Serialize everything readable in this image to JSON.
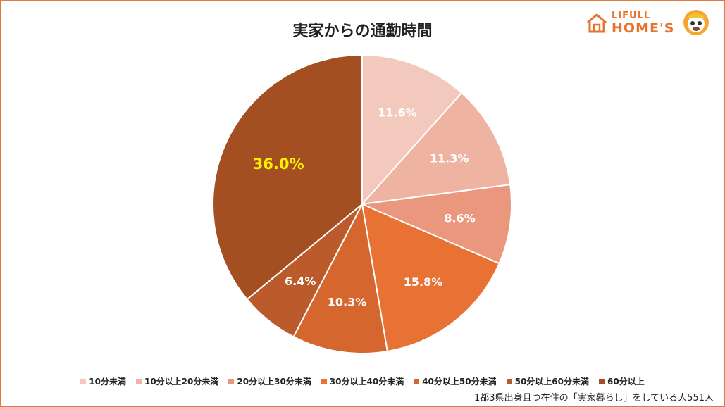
{
  "title": "実家からの通勤時間",
  "logo": {
    "line1": "LIFULL",
    "line2": "HOME'S",
    "brand_color": "#e8732e"
  },
  "chart_data": {
    "type": "pie",
    "title": "実家からの通勤時間",
    "start_angle_deg": 0,
    "direction": "clockwise",
    "slices": [
      {
        "label": "10分未満",
        "value": 11.6,
        "text": "11.6%",
        "color": "#f3c8bd",
        "label_color": "#ffffff"
      },
      {
        "label": "10分以上20分未満",
        "value": 11.3,
        "text": "11.3%",
        "color": "#efb3a2",
        "label_color": "#ffffff"
      },
      {
        "label": "20分以上30分未満",
        "value": 8.6,
        "text": "8.6%",
        "color": "#ea977d",
        "label_color": "#ffffff"
      },
      {
        "label": "30分以上40分未満",
        "value": 15.8,
        "text": "15.8%",
        "color": "#e87234",
        "label_color": "#ffffff"
      },
      {
        "label": "40分以上50分未満",
        "value": 10.3,
        "text": "10.3%",
        "color": "#d4662e",
        "label_color": "#ffffff"
      },
      {
        "label": "50分以上60分未満",
        "value": 6.4,
        "text": "6.4%",
        "color": "#bb5a2b",
        "label_color": "#ffffff"
      },
      {
        "label": "60分以上",
        "value": 36.0,
        "text": "36.0%",
        "color": "#a34f22",
        "label_color": "#fff200"
      }
    ],
    "legend_position": "bottom"
  },
  "footnote": "1都3県出身且つ在住の「実家暮らし」をしている人551人"
}
